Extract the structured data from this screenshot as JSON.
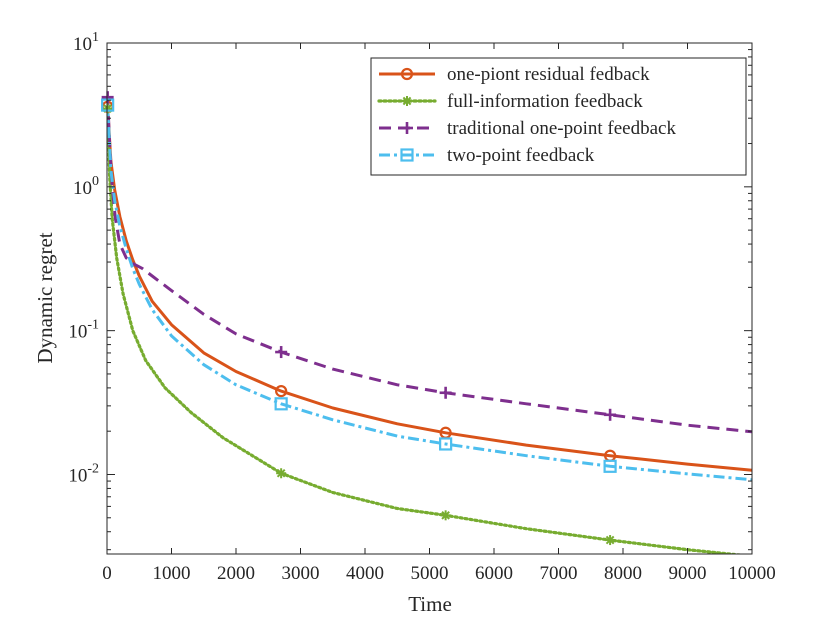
{
  "chart_data": {
    "type": "line",
    "title": "",
    "xlabel": "Time",
    "ylabel": "Dynamic regret",
    "xlim": [
      0,
      10000
    ],
    "ylim": [
      0.0028,
      10
    ],
    "yscale": "log",
    "grid": false,
    "legend_position": "top-right",
    "x_ticks": [
      0,
      1000,
      2000,
      3000,
      4000,
      5000,
      6000,
      7000,
      8000,
      9000,
      10000
    ],
    "x_tick_labels": [
      "0",
      "1000",
      "2000",
      "3000",
      "4000",
      "5000",
      "6000",
      "7000",
      "8000",
      "9000",
      "10000"
    ],
    "y_ticks": [
      {
        "value": 10,
        "base": "10",
        "exp": "1"
      },
      {
        "value": 1,
        "base": "10",
        "exp": "0"
      },
      {
        "value": 0.1,
        "base": "10",
        "exp": "-1"
      },
      {
        "value": 0.01,
        "base": "10",
        "exp": "-2"
      }
    ],
    "series": [
      {
        "name": "one-piont residual fedback",
        "color": "#D95319",
        "dash": "solid",
        "marker": "circle",
        "x": [
          10,
          60,
          120,
          200,
          300,
          400,
          500,
          700,
          1000,
          1500,
          2000,
          2700,
          3500,
          4500,
          5250,
          6500,
          7800,
          9000,
          10000
        ],
        "y": [
          3.6,
          1.5,
          0.95,
          0.62,
          0.42,
          0.31,
          0.24,
          0.16,
          0.11,
          0.07,
          0.052,
          0.038,
          0.029,
          0.0225,
          0.0195,
          0.016,
          0.0135,
          0.0118,
          0.0107
        ],
        "marker_x": [
          10,
          2700,
          5250,
          7800
        ],
        "marker_y": [
          3.6,
          0.038,
          0.0195,
          0.0135
        ]
      },
      {
        "name": "full-information feedback",
        "color": "#77AC30",
        "dash": "dotted",
        "marker": "asterisk",
        "x": [
          10,
          40,
          80,
          150,
          250,
          400,
          600,
          900,
          1300,
          1800,
          2700,
          3500,
          4500,
          5250,
          6500,
          7800,
          9000,
          10000
        ],
        "y": [
          3.5,
          1.2,
          0.6,
          0.32,
          0.18,
          0.1,
          0.062,
          0.04,
          0.027,
          0.018,
          0.0102,
          0.0075,
          0.0058,
          0.0052,
          0.0042,
          0.0035,
          0.003,
          0.0027
        ],
        "marker_x": [
          10,
          2700,
          5250,
          7800
        ],
        "marker_y": [
          3.5,
          0.0102,
          0.0052,
          0.0035
        ]
      },
      {
        "name": "traditional one-point feedback",
        "color": "#7E2F8E",
        "dash": "dashed",
        "marker": "plus",
        "x": [
          10,
          40,
          80,
          130,
          200,
          300,
          420,
          550,
          700,
          1000,
          1500,
          2000,
          2700,
          3500,
          4500,
          5250,
          6500,
          7800,
          9000,
          10000
        ],
        "y": [
          4.2,
          2.0,
          1.0,
          0.6,
          0.4,
          0.32,
          0.29,
          0.27,
          0.24,
          0.19,
          0.13,
          0.095,
          0.071,
          0.054,
          0.042,
          0.037,
          0.031,
          0.026,
          0.022,
          0.0198
        ],
        "marker_x": [
          10,
          2700,
          5250,
          7800
        ],
        "marker_y": [
          4.2,
          0.071,
          0.037,
          0.026
        ]
      },
      {
        "name": "two-point feedback",
        "color": "#4DBEEE",
        "dash": "dashdot",
        "marker": "square",
        "x": [
          10,
          60,
          120,
          200,
          300,
          400,
          500,
          700,
          1000,
          1500,
          2000,
          2700,
          3500,
          4500,
          5250,
          6500,
          7800,
          9000,
          10000
        ],
        "y": [
          3.7,
          1.3,
          0.8,
          0.53,
          0.37,
          0.27,
          0.21,
          0.14,
          0.092,
          0.058,
          0.042,
          0.031,
          0.024,
          0.0185,
          0.0163,
          0.0135,
          0.0114,
          0.0101,
          0.0092
        ],
        "marker_x": [
          10,
          2700,
          5250,
          7800
        ],
        "marker_y": [
          3.7,
          0.031,
          0.0163,
          0.0114
        ]
      }
    ]
  }
}
